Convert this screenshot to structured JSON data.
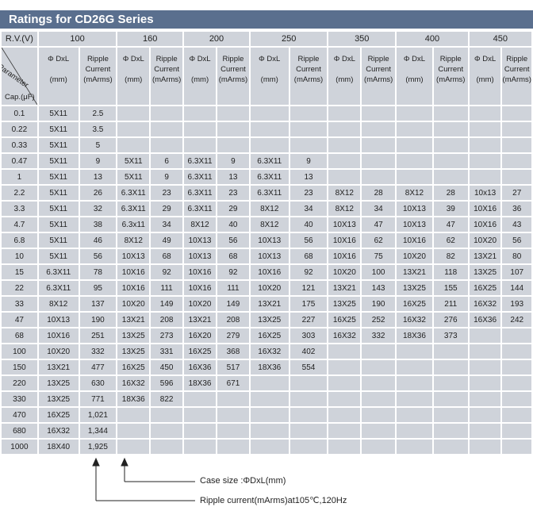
{
  "title": "Ratings for CD26G Series",
  "rv_label": "R.V.(V)",
  "param_label": "Parameter",
  "cap_label": "Cap.(μF)",
  "voltages": [
    "100",
    "160",
    "200",
    "250",
    "350",
    "400",
    "450"
  ],
  "col_dxl": [
    "Φ DxL",
    "(mm)"
  ],
  "col_ripple": [
    "Ripple",
    "Current",
    "(mArms)"
  ],
  "rows": [
    {
      "cap": "0.1",
      "v": [
        [
          "5X11",
          "2.5"
        ],
        [
          "",
          ""
        ],
        [
          "",
          ""
        ],
        [
          "",
          ""
        ],
        [
          "",
          ""
        ],
        [
          "",
          ""
        ],
        [
          "",
          ""
        ]
      ]
    },
    {
      "cap": "0.22",
      "v": [
        [
          "5X11",
          "3.5"
        ],
        [
          "",
          ""
        ],
        [
          "",
          ""
        ],
        [
          "",
          ""
        ],
        [
          "",
          ""
        ],
        [
          "",
          ""
        ],
        [
          "",
          ""
        ]
      ]
    },
    {
      "cap": "0.33",
      "v": [
        [
          "5X11",
          "5"
        ],
        [
          "",
          ""
        ],
        [
          "",
          ""
        ],
        [
          "",
          ""
        ],
        [
          "",
          ""
        ],
        [
          "",
          ""
        ],
        [
          "",
          ""
        ]
      ]
    },
    {
      "cap": "0.47",
      "v": [
        [
          "5X11",
          "9"
        ],
        [
          "5X11",
          "6"
        ],
        [
          "6.3X11",
          "9"
        ],
        [
          "6.3X11",
          "9"
        ],
        [
          "",
          ""
        ],
        [
          "",
          ""
        ],
        [
          "",
          ""
        ]
      ]
    },
    {
      "cap": "1",
      "v": [
        [
          "5X11",
          "13"
        ],
        [
          "5X11",
          "9"
        ],
        [
          "6.3X11",
          "13"
        ],
        [
          "6.3X11",
          "13"
        ],
        [
          "",
          ""
        ],
        [
          "",
          ""
        ],
        [
          "",
          ""
        ]
      ]
    },
    {
      "cap": "2.2",
      "v": [
        [
          "5X11",
          "26"
        ],
        [
          "6.3X11",
          "23"
        ],
        [
          "6.3X11",
          "23"
        ],
        [
          "6.3X11",
          "23"
        ],
        [
          "8X12",
          "28"
        ],
        [
          "8X12",
          "28"
        ],
        [
          "10x13",
          "27"
        ]
      ]
    },
    {
      "cap": "3.3",
      "v": [
        [
          "5X11",
          "32"
        ],
        [
          "6.3X11",
          "29"
        ],
        [
          "6.3X11",
          "29"
        ],
        [
          "8X12",
          "34"
        ],
        [
          "8X12",
          "34"
        ],
        [
          "10X13",
          "39"
        ],
        [
          "10X16",
          "36"
        ]
      ]
    },
    {
      "cap": "4.7",
      "v": [
        [
          "5X11",
          "38"
        ],
        [
          "6.3x11",
          "34"
        ],
        [
          "8X12",
          "40"
        ],
        [
          "8X12",
          "40"
        ],
        [
          "10X13",
          "47"
        ],
        [
          "10X13",
          "47"
        ],
        [
          "10X16",
          "43"
        ]
      ]
    },
    {
      "cap": "6.8",
      "v": [
        [
          "5X11",
          "46"
        ],
        [
          "8X12",
          "49"
        ],
        [
          "10X13",
          "56"
        ],
        [
          "10X13",
          "56"
        ],
        [
          "10X16",
          "62"
        ],
        [
          "10X16",
          "62"
        ],
        [
          "10X20",
          "56"
        ]
      ]
    },
    {
      "cap": "10",
      "v": [
        [
          "5X11",
          "56"
        ],
        [
          "10X13",
          "68"
        ],
        [
          "10X13",
          "68"
        ],
        [
          "10X13",
          "68"
        ],
        [
          "10X16",
          "75"
        ],
        [
          "10X20",
          "82"
        ],
        [
          "13X21",
          "80"
        ]
      ]
    },
    {
      "cap": "15",
      "v": [
        [
          "6.3X11",
          "78"
        ],
        [
          "10X16",
          "92"
        ],
        [
          "10X16",
          "92"
        ],
        [
          "10X16",
          "92"
        ],
        [
          "10X20",
          "100"
        ],
        [
          "13X21",
          "118"
        ],
        [
          "13X25",
          "107"
        ]
      ]
    },
    {
      "cap": "22",
      "v": [
        [
          "6.3X11",
          "95"
        ],
        [
          "10X16",
          "111"
        ],
        [
          "10X16",
          "111"
        ],
        [
          "10X20",
          "121"
        ],
        [
          "13X21",
          "143"
        ],
        [
          "13X25",
          "155"
        ],
        [
          "16X25",
          "144"
        ]
      ]
    },
    {
      "cap": "33",
      "v": [
        [
          "8X12",
          "137"
        ],
        [
          "10X20",
          "149"
        ],
        [
          "10X20",
          "149"
        ],
        [
          "13X21",
          "175"
        ],
        [
          "13X25",
          "190"
        ],
        [
          "16X25",
          "211"
        ],
        [
          "16X32",
          "193"
        ]
      ]
    },
    {
      "cap": "47",
      "v": [
        [
          "10X13",
          "190"
        ],
        [
          "13X21",
          "208"
        ],
        [
          "13X21",
          "208"
        ],
        [
          "13X25",
          "227"
        ],
        [
          "16X25",
          "252"
        ],
        [
          "16X32",
          "276"
        ],
        [
          "16X36",
          "242"
        ]
      ]
    },
    {
      "cap": "68",
      "v": [
        [
          "10X16",
          "251"
        ],
        [
          "13X25",
          "273"
        ],
        [
          "16X20",
          "279"
        ],
        [
          "16X25",
          "303"
        ],
        [
          "16X32",
          "332"
        ],
        [
          "18X36",
          "373"
        ],
        [
          "",
          ""
        ]
      ]
    },
    {
      "cap": "100",
      "v": [
        [
          "10X20",
          "332"
        ],
        [
          "13X25",
          "331"
        ],
        [
          "16X25",
          "368"
        ],
        [
          "16X32",
          "402"
        ],
        [
          "",
          ""
        ],
        [
          "",
          ""
        ],
        [
          "",
          ""
        ]
      ]
    },
    {
      "cap": "150",
      "v": [
        [
          "13X21",
          "477"
        ],
        [
          "16X25",
          "450"
        ],
        [
          "16X36",
          "517"
        ],
        [
          "18X36",
          "554"
        ],
        [
          "",
          ""
        ],
        [
          "",
          ""
        ],
        [
          "",
          ""
        ]
      ]
    },
    {
      "cap": "220",
      "v": [
        [
          "13X25",
          "630"
        ],
        [
          "16X32",
          "596"
        ],
        [
          "18X36",
          "671"
        ],
        [
          "",
          ""
        ],
        [
          "",
          ""
        ],
        [
          "",
          ""
        ],
        [
          "",
          ""
        ]
      ]
    },
    {
      "cap": "330",
      "v": [
        [
          "13X25",
          "771"
        ],
        [
          "18X36",
          "822"
        ],
        [
          "",
          ""
        ],
        [
          "",
          ""
        ],
        [
          "",
          ""
        ],
        [
          "",
          ""
        ],
        [
          "",
          ""
        ]
      ]
    },
    {
      "cap": "470",
      "v": [
        [
          "16X25",
          "1,021"
        ],
        [
          "",
          ""
        ],
        [
          "",
          ""
        ],
        [
          "",
          ""
        ],
        [
          "",
          ""
        ],
        [
          "",
          ""
        ],
        [
          "",
          ""
        ]
      ]
    },
    {
      "cap": "680",
      "v": [
        [
          "16X32",
          "1,344"
        ],
        [
          "",
          ""
        ],
        [
          "",
          ""
        ],
        [
          "",
          ""
        ],
        [
          "",
          ""
        ],
        [
          "",
          ""
        ],
        [
          "",
          ""
        ]
      ]
    },
    {
      "cap": "1000",
      "v": [
        [
          "18X40",
          "1,925"
        ],
        [
          "",
          ""
        ],
        [
          "",
          ""
        ],
        [
          "",
          ""
        ],
        [
          "",
          ""
        ],
        [
          "",
          ""
        ],
        [
          "",
          ""
        ]
      ]
    }
  ],
  "legend_case": "Case size :ΦDxL(mm)",
  "legend_ripple": "Ripple current(mArms)at105℃,120Hz"
}
